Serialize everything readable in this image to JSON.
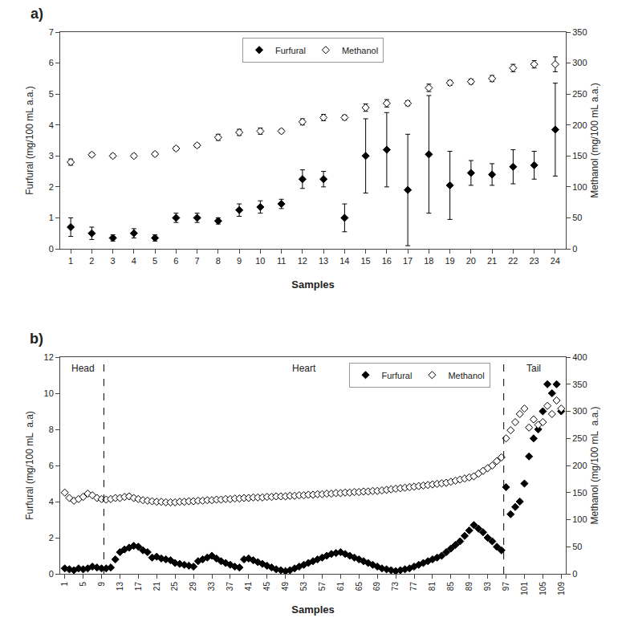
{
  "chart_data": [
    {
      "type": "scatter",
      "title": "a)",
      "x_label": "Samples",
      "y_label": "Furfural (mg/100 mL a.a.)",
      "y2_label": "Methanol (mg/100 mL a.a.)",
      "x": [
        1,
        2,
        3,
        4,
        5,
        6,
        7,
        8,
        9,
        10,
        11,
        12,
        13,
        14,
        15,
        16,
        17,
        18,
        19,
        20,
        21,
        22,
        23,
        24
      ],
      "series": [
        {
          "name": "Furfural",
          "color": "black",
          "marker": "diamond",
          "values": [
            0.7,
            0.5,
            0.35,
            0.5,
            0.35,
            1.0,
            1.0,
            0.9,
            1.25,
            1.35,
            1.45,
            2.25,
            2.25,
            1.0,
            3.0,
            3.2,
            1.9,
            3.05,
            2.05,
            2.45,
            2.4,
            2.65,
            2.7,
            3.85
          ],
          "error": [
            0.3,
            0.2,
            0.1,
            0.15,
            0.1,
            0.15,
            0.15,
            0.1,
            0.2,
            0.2,
            0.15,
            0.3,
            0.25,
            0.45,
            1.2,
            1.2,
            1.8,
            1.9,
            1.1,
            0.4,
            0.35,
            0.55,
            0.45,
            1.5
          ]
        },
        {
          "name": "Methanol",
          "axis": "y2",
          "color": "black",
          "marker": "diamond-open",
          "values": [
            140,
            152,
            150,
            150,
            153,
            162,
            167,
            180,
            188,
            190,
            190,
            205,
            212,
            212,
            228,
            235,
            235,
            260,
            268,
            270,
            275,
            292,
            298,
            298
          ],
          "error": [
            5,
            3,
            3,
            3,
            3,
            3,
            3,
            5,
            5,
            5,
            3,
            5,
            5,
            4,
            6,
            6,
            4,
            6,
            4,
            4,
            5,
            6,
            6,
            12
          ]
        }
      ],
      "xlim": [
        0.5,
        24.5
      ],
      "xticks": [
        1,
        2,
        3,
        4,
        5,
        6,
        7,
        8,
        9,
        10,
        11,
        12,
        13,
        14,
        15,
        16,
        17,
        18,
        19,
        20,
        21,
        22,
        23,
        24
      ],
      "ylim": [
        0,
        7
      ],
      "yticks": [
        0,
        1,
        2,
        3,
        4,
        5,
        6,
        7
      ],
      "y2lim": [
        0,
        350
      ],
      "y2ticks": [
        0,
        50,
        100,
        150,
        200,
        250,
        300,
        350
      ],
      "grid": false,
      "legend": "upper center"
    },
    {
      "type": "scatter",
      "title": "b)",
      "x_label": "Samples",
      "y_label": "Furfural (mg/100 mL  a.a)",
      "y2_label": "Methanol (mg/100 mL  a.a.)",
      "x": [
        1,
        2,
        3,
        4,
        5,
        6,
        7,
        8,
        9,
        10,
        11,
        12,
        13,
        14,
        15,
        16,
        17,
        18,
        19,
        20,
        21,
        22,
        23,
        24,
        25,
        26,
        27,
        28,
        29,
        30,
        31,
        32,
        33,
        34,
        35,
        36,
        37,
        38,
        39,
        40,
        41,
        42,
        43,
        44,
        45,
        46,
        47,
        48,
        49,
        50,
        51,
        52,
        53,
        54,
        55,
        56,
        57,
        58,
        59,
        60,
        61,
        62,
        63,
        64,
        65,
        66,
        67,
        68,
        69,
        70,
        71,
        72,
        73,
        74,
        75,
        76,
        77,
        78,
        79,
        80,
        81,
        82,
        83,
        84,
        85,
        86,
        87,
        88,
        89,
        90,
        91,
        92,
        93,
        94,
        95,
        96,
        97,
        98,
        99,
        100,
        101,
        102,
        103,
        104,
        105,
        106,
        107,
        108,
        109
      ],
      "series": [
        {
          "name": "Furfural",
          "color": "black",
          "marker": "diamond",
          "values": [
            0.3,
            0.25,
            0.2,
            0.3,
            0.25,
            0.3,
            0.4,
            0.35,
            0.3,
            0.3,
            0.35,
            0.8,
            1.2,
            1.35,
            1.45,
            1.55,
            1.5,
            1.3,
            1.2,
            0.9,
            0.95,
            0.85,
            0.8,
            0.75,
            0.6,
            0.55,
            0.5,
            0.45,
            0.4,
            0.7,
            0.8,
            0.9,
            1.0,
            0.85,
            0.7,
            0.6,
            0.5,
            0.4,
            0.35,
            0.8,
            0.85,
            0.75,
            0.65,
            0.55,
            0.45,
            0.35,
            0.25,
            0.2,
            0.15,
            0.2,
            0.3,
            0.4,
            0.5,
            0.6,
            0.7,
            0.8,
            0.9,
            1.0,
            1.1,
            1.15,
            1.2,
            1.1,
            1.0,
            0.9,
            0.8,
            0.7,
            0.6,
            0.5,
            0.4,
            0.3,
            0.25,
            0.2,
            0.15,
            0.2,
            0.25,
            0.3,
            0.4,
            0.5,
            0.6,
            0.7,
            0.8,
            0.9,
            1.0,
            1.2,
            1.4,
            1.6,
            1.8,
            2.1,
            2.4,
            2.7,
            2.5,
            2.3,
            2.0,
            1.8,
            1.5,
            1.3,
            4.8,
            3.3,
            3.7,
            4.0,
            5.0,
            6.5,
            7.5,
            8.0,
            9.0,
            10.5,
            10.0,
            10.5,
            9.0
          ]
        },
        {
          "name": "Methanol",
          "axis": "y2",
          "color": "black",
          "marker": "diamond-open",
          "values": [
            150,
            140,
            135,
            138,
            142,
            148,
            145,
            140,
            138,
            137,
            138,
            140,
            140,
            142,
            143,
            140,
            138,
            136,
            135,
            134,
            133,
            133,
            132,
            132,
            132,
            133,
            133,
            134,
            134,
            135,
            135,
            136,
            136,
            137,
            137,
            138,
            138,
            139,
            139,
            140,
            140,
            141,
            141,
            141,
            142,
            142,
            143,
            143,
            143,
            144,
            144,
            145,
            145,
            146,
            146,
            147,
            147,
            148,
            148,
            149,
            149,
            150,
            150,
            151,
            151,
            152,
            152,
            153,
            153,
            154,
            155,
            156,
            157,
            158,
            159,
            160,
            161,
            162,
            163,
            164,
            165,
            166,
            167,
            168,
            170,
            172,
            174,
            176,
            178,
            180,
            185,
            190,
            195,
            200,
            208,
            215,
            250,
            265,
            280,
            295,
            305,
            270,
            285,
            275,
            280,
            310,
            295,
            320,
            305
          ]
        }
      ],
      "vlines": [
        9.5,
        96.5
      ],
      "line_style": "dashed",
      "annotations": [
        {
          "text": "Head",
          "x": 5.0,
          "y": 11.8
        },
        {
          "text": "Heart",
          "x": 53.0,
          "y": 11.8
        },
        {
          "text": "Tail",
          "x": 103.0,
          "y": 11.8
        }
      ],
      "xlim": [
        0,
        110
      ],
      "xticks": [
        1,
        5,
        9,
        13,
        17,
        21,
        25,
        29,
        33,
        37,
        41,
        45,
        49,
        53,
        57,
        61,
        65,
        69,
        73,
        77,
        81,
        85,
        89,
        93,
        97,
        101,
        105,
        109
      ],
      "ylim": [
        0,
        12
      ],
      "yticks": [
        0,
        2,
        4,
        6,
        8,
        10,
        12
      ],
      "y2lim": [
        0,
        400
      ],
      "y2ticks": [
        0,
        50,
        100,
        150,
        200,
        250,
        300,
        350,
        400
      ],
      "grid": false,
      "legend": "upper right"
    }
  ]
}
